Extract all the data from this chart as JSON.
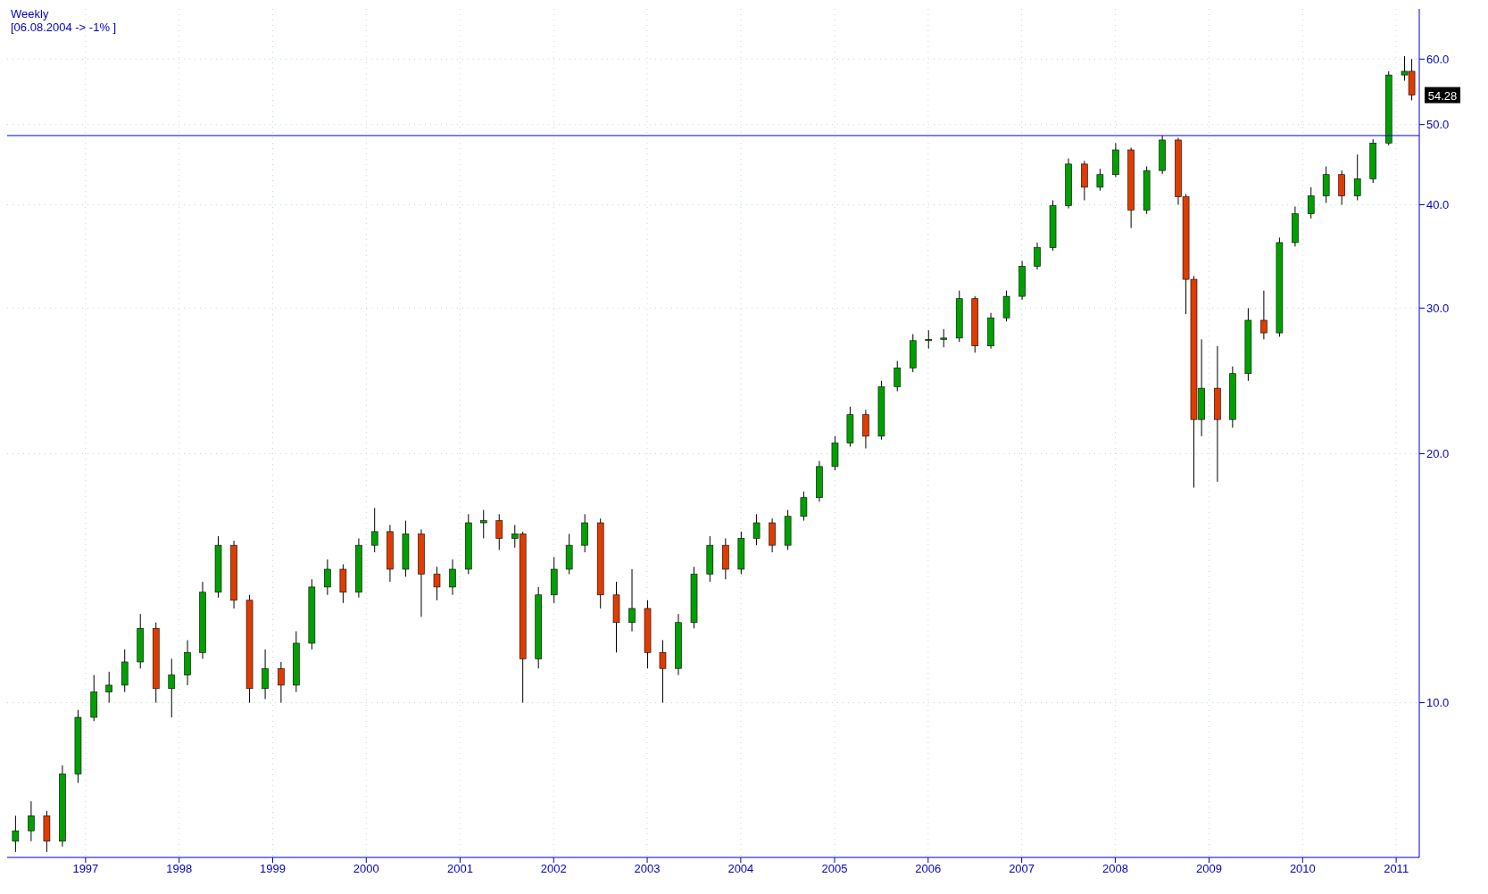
{
  "chart_data": {
    "type": "candlestick",
    "title": "Weekly",
    "annotations": [
      "[06.08.2004 -> -1% ]",
      "54.28"
    ],
    "x": [
      "1996-04",
      "1996-06",
      "1996-08",
      "1996-10",
      "1996-12",
      "1997-02",
      "1997-04",
      "1997-06",
      "1997-08",
      "1997-10",
      "1997-12",
      "1998-02",
      "1998-04",
      "1998-06",
      "1998-08",
      "1998-10",
      "1998-12",
      "1999-02",
      "1999-04",
      "1999-06",
      "1999-08",
      "1999-10",
      "1999-12",
      "2000-02",
      "2000-04",
      "2000-06",
      "2000-08",
      "2000-10",
      "2000-12",
      "2001-02",
      "2001-04",
      "2001-06",
      "2001-08",
      "2001-09",
      "2001-11",
      "2002-01",
      "2002-03",
      "2002-05",
      "2002-07",
      "2002-09",
      "2002-11",
      "2003-01",
      "2003-03",
      "2003-05",
      "2003-07",
      "2003-09",
      "2003-11",
      "2004-01",
      "2004-03",
      "2004-05",
      "2004-07",
      "2004-09",
      "2004-11",
      "2005-01",
      "2005-03",
      "2005-05",
      "2005-07",
      "2005-09",
      "2005-11",
      "2006-01",
      "2006-03",
      "2006-05",
      "2006-07",
      "2006-09",
      "2006-11",
      "2007-01",
      "2007-03",
      "2007-05",
      "2007-07",
      "2007-09",
      "2007-11",
      "2008-01",
      "2008-03",
      "2008-05",
      "2008-07",
      "2008-09",
      "2008-10",
      "2008-11",
      "2008-12",
      "2009-02",
      "2009-04",
      "2009-06",
      "2009-08",
      "2009-10",
      "2009-12",
      "2010-02",
      "2010-04",
      "2010-06",
      "2010-08",
      "2010-10",
      "2010-12",
      "2011-02",
      "2011-03"
    ],
    "ohlc": [
      [
        6.8,
        7.3,
        6.6,
        7.0
      ],
      [
        7.0,
        7.6,
        6.8,
        7.3
      ],
      [
        7.3,
        7.4,
        6.6,
        6.8
      ],
      [
        6.8,
        8.4,
        6.7,
        8.2
      ],
      [
        8.2,
        9.8,
        8.0,
        9.6
      ],
      [
        9.6,
        10.8,
        9.5,
        10.3
      ],
      [
        10.3,
        10.9,
        10.0,
        10.5
      ],
      [
        10.5,
        11.6,
        10.3,
        11.2
      ],
      [
        11.2,
        12.8,
        11.0,
        12.3
      ],
      [
        12.3,
        12.5,
        10.0,
        10.4
      ],
      [
        10.4,
        11.3,
        9.6,
        10.8
      ],
      [
        10.8,
        11.9,
        10.5,
        11.5
      ],
      [
        11.5,
        14.0,
        11.3,
        13.6
      ],
      [
        13.6,
        15.9,
        13.4,
        15.5
      ],
      [
        15.5,
        15.7,
        13.0,
        13.3
      ],
      [
        13.3,
        13.5,
        10.0,
        10.4
      ],
      [
        10.4,
        11.6,
        10.1,
        11.0
      ],
      [
        11.0,
        11.2,
        10.0,
        10.5
      ],
      [
        10.5,
        12.2,
        10.3,
        11.8
      ],
      [
        11.8,
        14.1,
        11.6,
        13.8
      ],
      [
        13.8,
        14.9,
        13.5,
        14.5
      ],
      [
        14.5,
        14.7,
        13.2,
        13.6
      ],
      [
        13.6,
        15.8,
        13.4,
        15.5
      ],
      [
        15.5,
        17.2,
        15.2,
        16.1
      ],
      [
        16.1,
        16.4,
        14.0,
        14.5
      ],
      [
        14.5,
        16.6,
        14.2,
        16.0
      ],
      [
        16.0,
        16.2,
        12.7,
        14.3
      ],
      [
        14.3,
        14.6,
        13.3,
        13.8
      ],
      [
        13.8,
        14.9,
        13.5,
        14.5
      ],
      [
        14.5,
        16.9,
        14.3,
        16.5
      ],
      [
        16.5,
        17.1,
        15.8,
        16.6
      ],
      [
        16.6,
        16.9,
        15.3,
        15.8
      ],
      [
        15.8,
        16.4,
        15.4,
        16.0
      ],
      [
        16.0,
        16.1,
        10.0,
        11.3
      ],
      [
        11.3,
        13.8,
        11.0,
        13.5
      ],
      [
        13.5,
        15.0,
        13.2,
        14.5
      ],
      [
        14.5,
        16.0,
        14.3,
        15.5
      ],
      [
        15.5,
        16.9,
        15.2,
        16.5
      ],
      [
        16.5,
        16.7,
        13.0,
        13.5
      ],
      [
        13.5,
        14.0,
        11.5,
        12.5
      ],
      [
        12.5,
        14.5,
        12.2,
        13.0
      ],
      [
        13.0,
        13.3,
        11.0,
        11.5
      ],
      [
        11.5,
        11.9,
        10.0,
        11.0
      ],
      [
        11.0,
        12.8,
        10.8,
        12.5
      ],
      [
        12.5,
        14.6,
        12.3,
        14.3
      ],
      [
        14.3,
        15.9,
        14.0,
        15.5
      ],
      [
        15.5,
        15.8,
        14.1,
        14.5
      ],
      [
        14.5,
        16.1,
        14.3,
        15.8
      ],
      [
        15.8,
        16.9,
        15.5,
        16.5
      ],
      [
        16.5,
        16.7,
        15.2,
        15.5
      ],
      [
        15.5,
        17.1,
        15.3,
        16.8
      ],
      [
        16.8,
        18.0,
        16.6,
        17.7
      ],
      [
        17.7,
        19.6,
        17.5,
        19.3
      ],
      [
        19.3,
        21.0,
        19.1,
        20.6
      ],
      [
        20.6,
        22.8,
        20.4,
        22.3
      ],
      [
        22.3,
        22.6,
        20.3,
        21.0
      ],
      [
        21.0,
        24.5,
        20.8,
        24.1
      ],
      [
        24.1,
        25.9,
        23.8,
        25.4
      ],
      [
        25.4,
        27.9,
        25.1,
        27.4
      ],
      [
        27.4,
        28.2,
        26.8,
        27.5
      ],
      [
        27.5,
        28.3,
        26.9,
        27.6
      ],
      [
        27.6,
        31.5,
        27.3,
        30.8
      ],
      [
        30.8,
        31.0,
        26.5,
        27.0
      ],
      [
        27.0,
        29.6,
        26.8,
        29.2
      ],
      [
        29.2,
        31.5,
        28.9,
        31.0
      ],
      [
        31.0,
        34.2,
        30.7,
        33.7
      ],
      [
        33.7,
        36.0,
        33.4,
        35.5
      ],
      [
        35.5,
        40.5,
        35.2,
        39.9
      ],
      [
        39.9,
        45.5,
        39.6,
        44.8
      ],
      [
        44.8,
        45.2,
        40.5,
        42.0
      ],
      [
        42.0,
        44.2,
        41.6,
        43.5
      ],
      [
        43.5,
        47.5,
        43.2,
        46.6
      ],
      [
        46.6,
        46.9,
        37.5,
        39.4
      ],
      [
        39.4,
        44.5,
        39.0,
        44.0
      ],
      [
        44.0,
        48.5,
        43.6,
        47.9
      ],
      [
        47.9,
        48.2,
        40.0,
        40.9
      ],
      [
        40.9,
        41.2,
        29.5,
        32.5
      ],
      [
        32.5,
        32.8,
        18.2,
        22.0
      ],
      [
        22.0,
        27.5,
        21.0,
        24.0
      ],
      [
        24.0,
        27.0,
        18.5,
        22.0
      ],
      [
        22.0,
        25.5,
        21.5,
        25.0
      ],
      [
        25.0,
        30.0,
        24.5,
        29.0
      ],
      [
        29.0,
        31.5,
        27.5,
        28.0
      ],
      [
        28.0,
        36.5,
        27.7,
        36.0
      ],
      [
        36.0,
        39.8,
        35.6,
        39.0
      ],
      [
        39.0,
        42.0,
        38.5,
        41.0
      ],
      [
        41.0,
        44.5,
        40.2,
        43.5
      ],
      [
        43.5,
        44.0,
        40.0,
        41.0
      ],
      [
        41.0,
        46.0,
        40.5,
        43.0
      ],
      [
        43.0,
        48.0,
        42.5,
        47.5
      ],
      [
        47.5,
        58.0,
        47.2,
        57.4
      ],
      [
        57.4,
        60.5,
        56.5,
        58.0
      ],
      [
        58.0,
        60.0,
        53.5,
        54.28
      ]
    ],
    "xlim": [
      "1996-03",
      "2011-04"
    ],
    "xticks": [
      "1997",
      "1998",
      "1999",
      "2000",
      "2001",
      "2002",
      "2003",
      "2004",
      "2005",
      "2006",
      "2007",
      "2008",
      "2009",
      "2010",
      "2011"
    ],
    "ylim": [
      6.5,
      69
    ],
    "yticks": [
      {
        "value": 10,
        "label": "10.0"
      },
      {
        "value": 20,
        "label": "20.0"
      },
      {
        "value": 30,
        "label": "30.0"
      },
      {
        "value": 40,
        "label": "40.0"
      },
      {
        "value": 50,
        "label": "50.0"
      },
      {
        "value": 60,
        "label": "60.0"
      }
    ],
    "log": true,
    "grid": true,
    "ref_lines": [
      {
        "axis": "y",
        "value": 48.5,
        "color": "#0000ff"
      }
    ]
  }
}
